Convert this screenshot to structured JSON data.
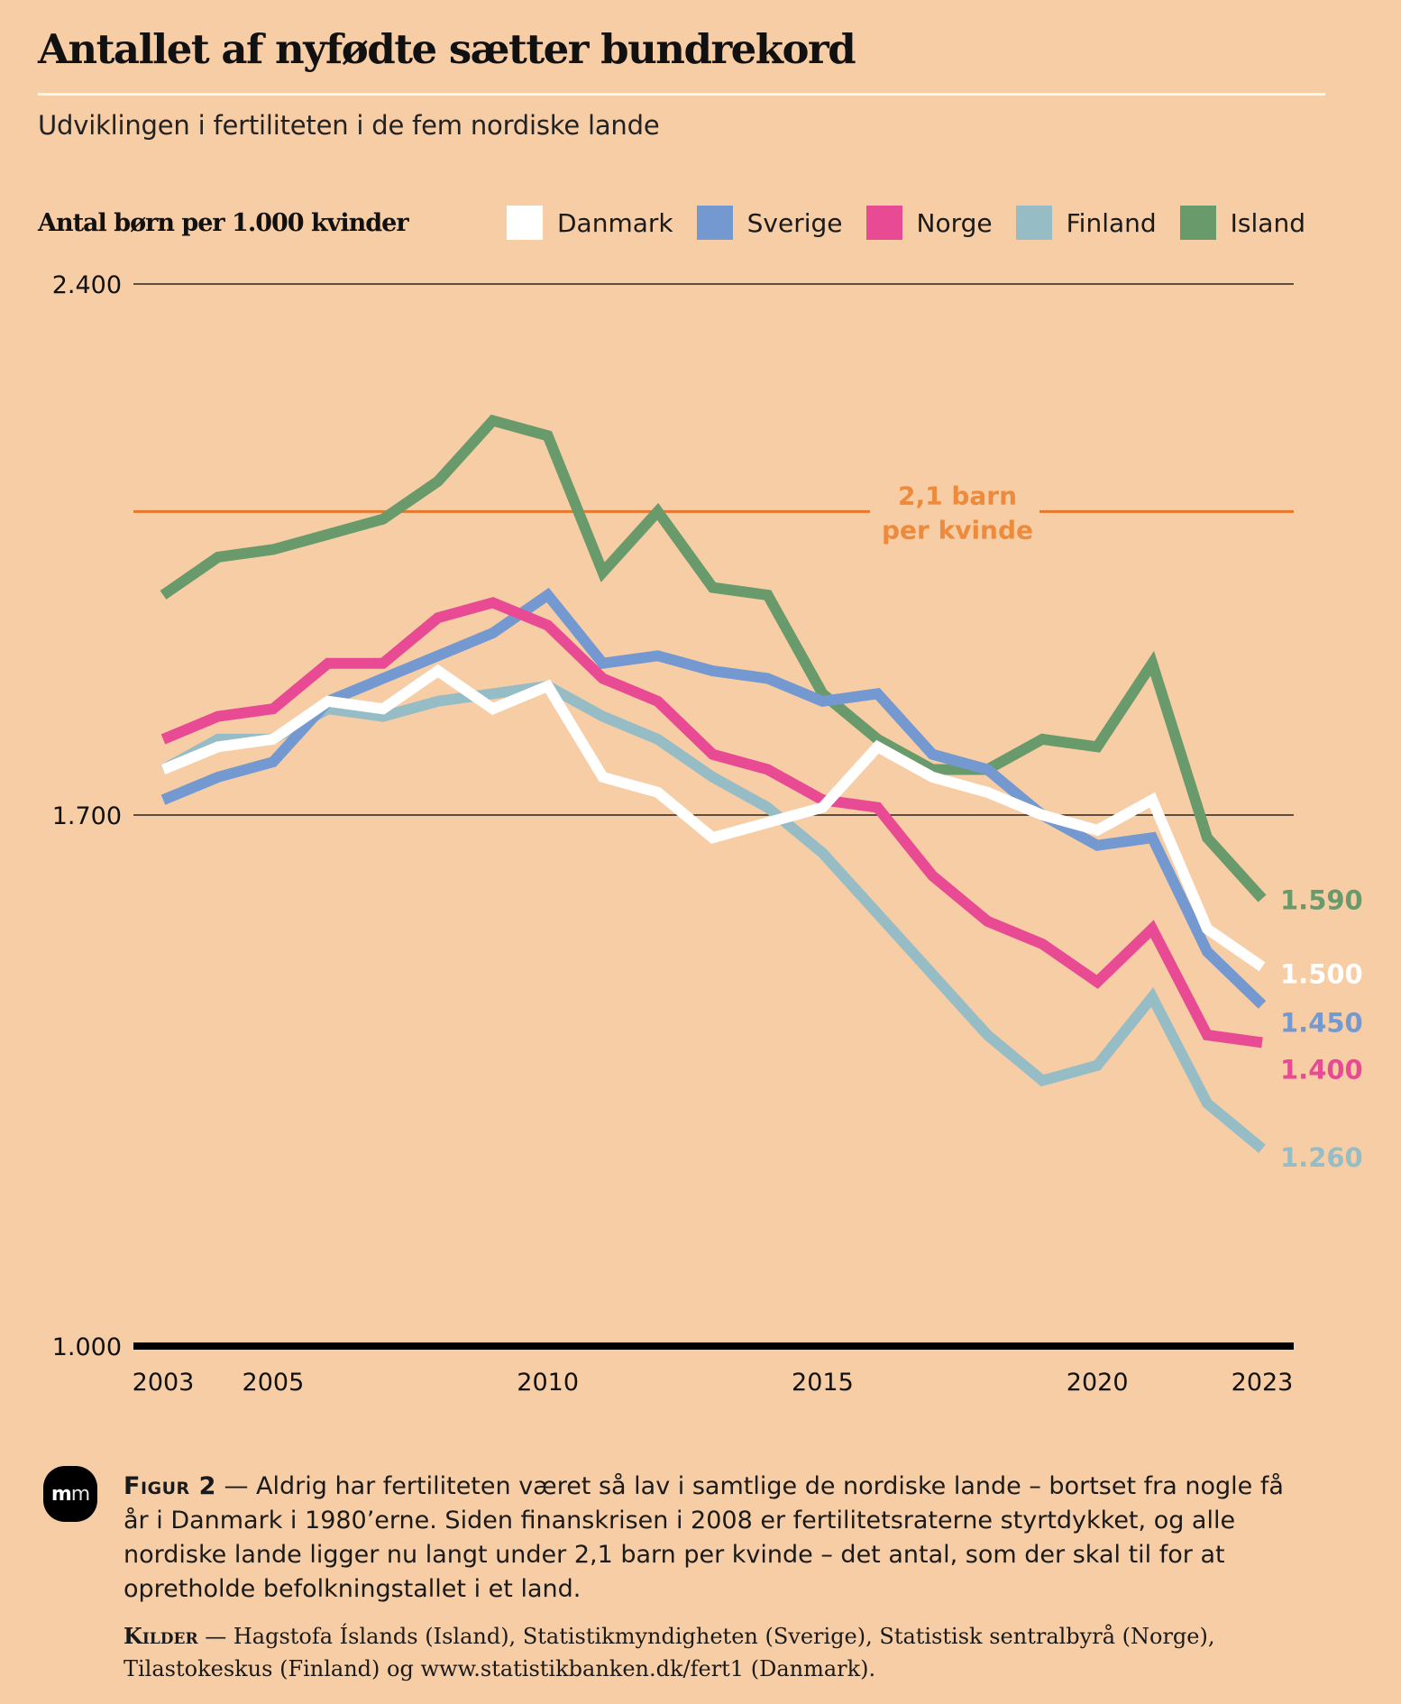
{
  "header": {
    "title": "Antallet af nyfødte sætter bundrekord",
    "subtitle": "Udviklingen i fertiliteten i de fem nordiske lande"
  },
  "chart_data": {
    "type": "line",
    "title": "Antallet af nyfødte sætter bundrekord",
    "subtitle": "Udviklingen i fertiliteten i de fem nordiske lande",
    "ylabel": "Antal børn per 1.000 kvinder",
    "xlabel": "",
    "ylim": [
      1000,
      2400
    ],
    "xlim": [
      2003,
      2023
    ],
    "yticks": [
      1000,
      1700,
      2400
    ],
    "ytick_labels": [
      "1.000",
      "1.700",
      "2.400"
    ],
    "xticks": [
      2003,
      2005,
      2010,
      2015,
      2020,
      2023
    ],
    "xtick_labels": [
      "2003",
      "2005",
      "2010",
      "2015",
      "2020",
      "2023"
    ],
    "grid": "horizontal at y ticks",
    "legend_position": "top",
    "x": [
      2003,
      2004,
      2005,
      2006,
      2007,
      2008,
      2009,
      2010,
      2011,
      2012,
      2013,
      2014,
      2015,
      2016,
      2017,
      2018,
      2019,
      2020,
      2021,
      2022,
      2023
    ],
    "series": [
      {
        "name": "Danmark",
        "color": "#ffffff",
        "values": [
          1760,
          1790,
          1800,
          1850,
          1840,
          1890,
          1840,
          1870,
          1750,
          1730,
          1670,
          1690,
          1710,
          1790,
          1750,
          1730,
          1700,
          1680,
          1720,
          1550,
          1500
        ],
        "end_label": "1.500"
      },
      {
        "name": "Sverige",
        "color": "#7499d1",
        "values": [
          1720,
          1750,
          1770,
          1850,
          1880,
          1910,
          1940,
          1990,
          1900,
          1910,
          1890,
          1880,
          1850,
          1860,
          1780,
          1760,
          1700,
          1660,
          1670,
          1520,
          1450
        ],
        "end_label": "1.450"
      },
      {
        "name": "Norge",
        "color": "#e84a93",
        "values": [
          1800,
          1830,
          1840,
          1900,
          1900,
          1960,
          1980,
          1950,
          1880,
          1850,
          1780,
          1760,
          1720,
          1710,
          1620,
          1560,
          1530,
          1480,
          1550,
          1410,
          1400
        ],
        "end_label": "1.400"
      },
      {
        "name": "Finland",
        "color": "#96bdc6",
        "values": [
          1760,
          1800,
          1800,
          1840,
          1830,
          1850,
          1860,
          1870,
          1830,
          1800,
          1750,
          1710,
          1650,
          1570,
          1490,
          1410,
          1350,
          1370,
          1460,
          1320,
          1260
        ],
        "end_label": "1.260"
      },
      {
        "name": "Island",
        "color": "#699a6b",
        "values": [
          1990,
          2040,
          2050,
          2070,
          2090,
          2140,
          2220,
          2200,
          2020,
          2100,
          2000,
          1990,
          1860,
          1800,
          1760,
          1760,
          1800,
          1790,
          1900,
          1670,
          1590
        ],
        "end_label": "1.590"
      }
    ],
    "reference_line": {
      "value": 2100,
      "color": "#e8772e",
      "label_line1": "2,1 barn",
      "label_line2": "per kvinde"
    }
  },
  "legend": [
    {
      "label": "Danmark",
      "color": "#ffffff"
    },
    {
      "label": "Sverige",
      "color": "#7499d1"
    },
    {
      "label": "Norge",
      "color": "#e84a93"
    },
    {
      "label": "Finland",
      "color": "#96bdc6"
    },
    {
      "label": "Island",
      "color": "#699a6b"
    }
  ],
  "footer": {
    "logo_bold": "m",
    "logo_light": "m",
    "figure_label": "Figur 2",
    "figure_text": " — Aldrig har fertiliteten været så lav i samtlige de nordiske lande – bortset fra nogle få år i Danmark i 1980’erne. Siden finanskrisen i 2008 er fertilitetsraterne styrtdykket, og alle nordiske lande ligger nu langt under 2,1 barn per kvinde – det antal, som der skal til for at opretholde befolkningstallet i et land.",
    "sources_label": "Kilder",
    "sources_text": " — Hagstofa Íslands (Island), Statistikmyndigheten (Sverige), Statistisk sentralbyrå (Norge), Tilastokeskus (Finland) og www.statistikbanken.dk/fert1 (Danmark)."
  }
}
